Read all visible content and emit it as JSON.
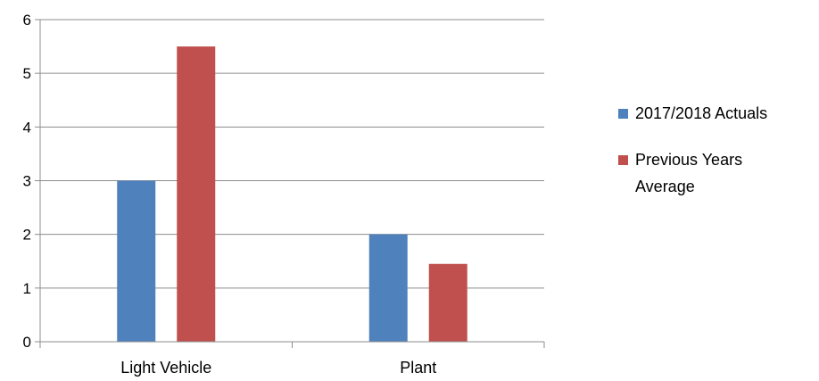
{
  "chart_data": {
    "type": "bar",
    "categories": [
      "Light Vehicle",
      "Plant"
    ],
    "series": [
      {
        "name": "2017/2018 Actuals",
        "values": [
          3,
          2
        ],
        "color": "#4f81bd"
      },
      {
        "name": "Previous Years Average",
        "values": [
          5.5,
          1.45
        ],
        "color": "#c0504d"
      }
    ],
    "title": "",
    "xlabel": "",
    "ylabel": "",
    "ylim": [
      0,
      6
    ],
    "yticks": [
      "0",
      "1",
      "2",
      "3",
      "4",
      "5",
      "6"
    ],
    "grid": true,
    "legend_position": "right",
    "legend_lines": [
      [
        "2017/2018 Actuals"
      ],
      [
        "Previous Years",
        "Average"
      ]
    ]
  }
}
